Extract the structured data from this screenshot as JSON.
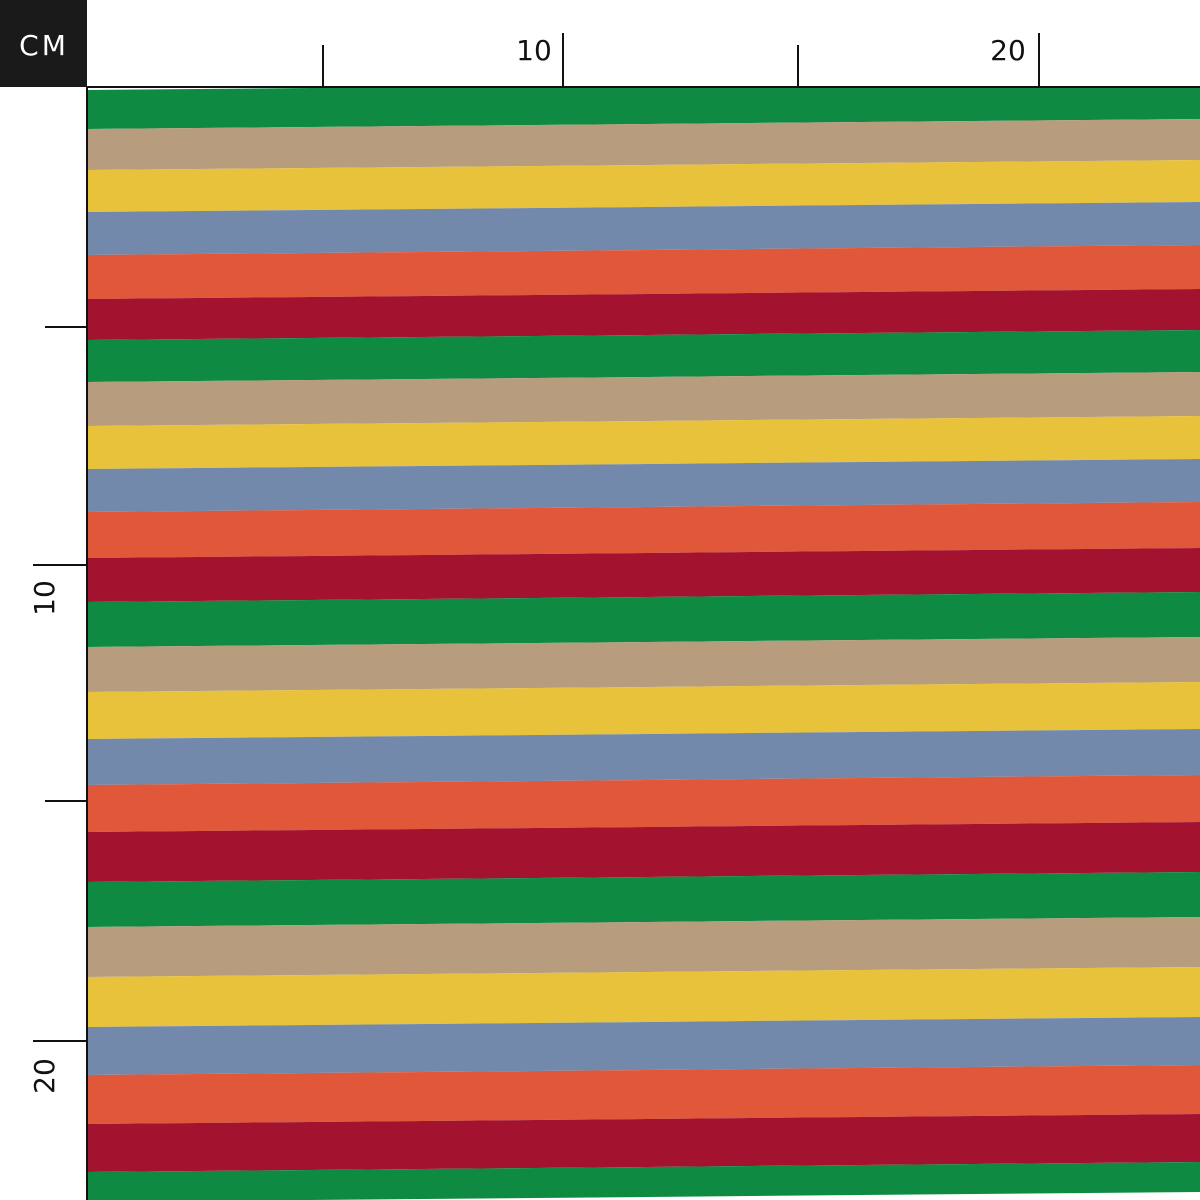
{
  "ruler": {
    "unit": "CM",
    "top_labels": [
      "10",
      "20"
    ],
    "left_labels": [
      "10",
      "20"
    ]
  }
}
